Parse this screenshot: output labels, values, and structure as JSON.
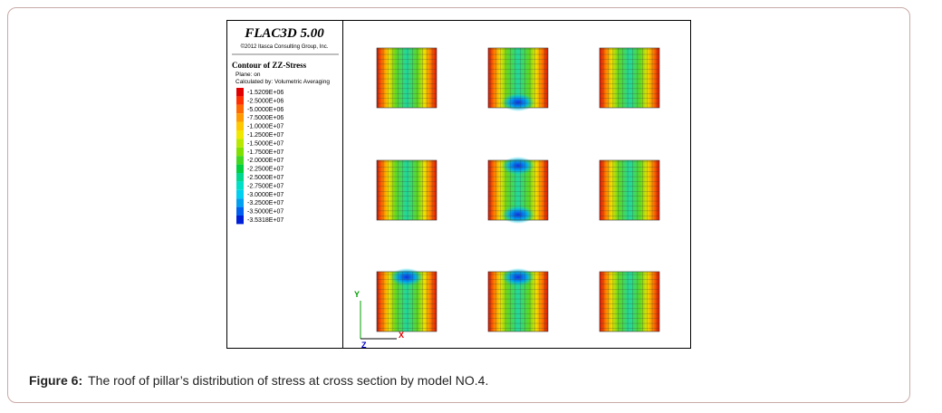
{
  "figure": {
    "header": {
      "title": "FLAC3D 5.00",
      "copyright": "©2012 Itasca Consulting Group, Inc."
    },
    "legend": {
      "title": "Contour of ZZ-Stress",
      "plane": "Plane: on",
      "calculated": "Calculated by: Volumetric Averaging",
      "values": [
        "-1.5209E+06",
        "-2.5000E+06",
        "-5.0000E+06",
        "-7.5000E+06",
        "-1.0000E+07",
        "-1.2500E+07",
        "-1.5000E+07",
        "-1.7500E+07",
        "-2.0000E+07",
        "-2.2500E+07",
        "-2.5000E+07",
        "-2.7500E+07",
        "-3.0000E+07",
        "-3.2500E+07",
        "-3.5000E+07",
        "-3.5318E+07"
      ]
    },
    "axes": {
      "y": "Y",
      "z": "Z",
      "x": "X"
    }
  },
  "caption": {
    "label": "Figure 6:",
    "text": "The roof of pillar’s distribution of stress at cross section by model NO.4."
  }
}
